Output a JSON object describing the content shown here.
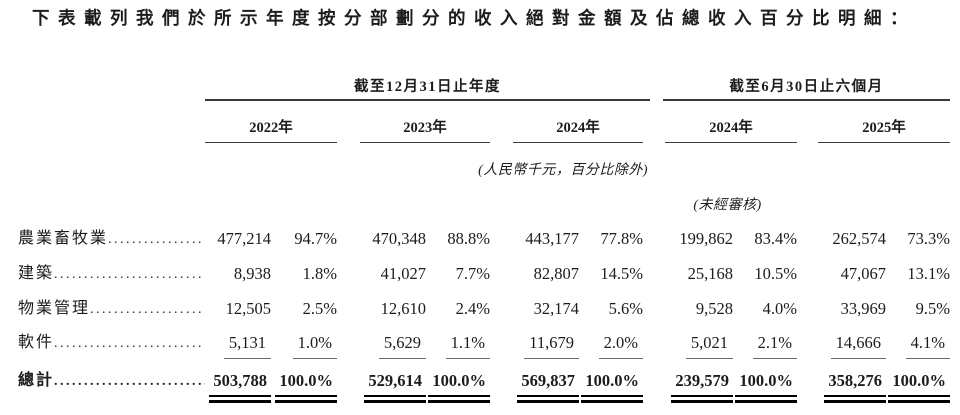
{
  "title": "下表載列我們於所示年度按分部劃分的收入絕對金額及佔總收入百分比明細：",
  "table": {
    "column_groups": [
      {
        "label": "截至12月31日止年度"
      },
      {
        "label": "截至6月30日止六個月"
      }
    ],
    "year_headers": [
      "2022年",
      "2023年",
      "2024年",
      "2024年",
      "2025年"
    ],
    "unit_note": "(人民幣千元，百分比除外)",
    "audit_note": "(未經審核)",
    "rows": [
      {
        "label": "農業畜牧業",
        "values": [
          "477,214",
          "94.7%",
          "470,348",
          "88.8%",
          "443,177",
          "77.8%",
          "199,862",
          "83.4%",
          "262,574",
          "73.3%"
        ]
      },
      {
        "label": "建築",
        "values": [
          "8,938",
          "1.8%",
          "41,027",
          "7.7%",
          "82,807",
          "14.5%",
          "25,168",
          "10.5%",
          "47,067",
          "13.1%"
        ]
      },
      {
        "label": "物業管理",
        "values": [
          "12,505",
          "2.5%",
          "12,610",
          "2.4%",
          "32,174",
          "5.6%",
          "9,528",
          "4.0%",
          "33,969",
          "9.5%"
        ]
      },
      {
        "label": "軟件",
        "values": [
          "5,131",
          "1.0%",
          "5,629",
          "1.1%",
          "11,679",
          "2.0%",
          "5,021",
          "2.1%",
          "14,666",
          "4.1%"
        ]
      }
    ],
    "total_row": {
      "label": "總計",
      "values": [
        "503,788",
        "100.0%",
        "529,614",
        "100.0%",
        "569,837",
        "100.0%",
        "239,579",
        "100.0%",
        "358,276",
        "100.0%"
      ]
    }
  },
  "colors": {
    "text": "#1c1c1c",
    "rule": "#3a3a3a",
    "thin_underline": "#6a6a6a",
    "double_underline": "#000000"
  }
}
